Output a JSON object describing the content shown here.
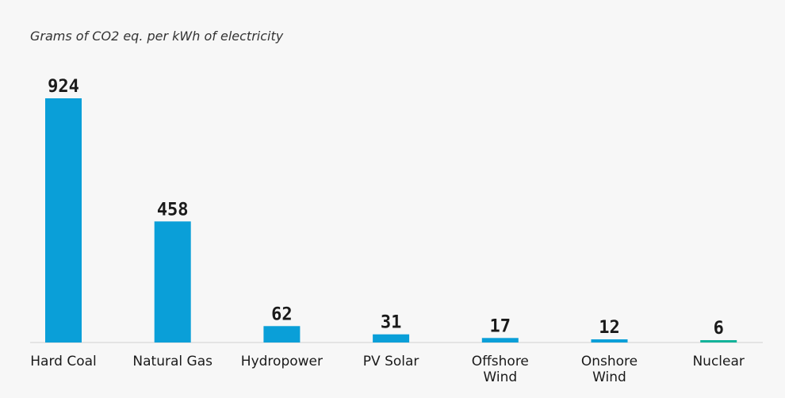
{
  "chart_data": {
    "type": "bar",
    "title": "Grams of CO2 eq. per kWh of electricity",
    "xlabel": "",
    "ylabel": "",
    "categories": [
      [
        "Hard Coal"
      ],
      [
        "Natural Gas"
      ],
      [
        "Hydropower"
      ],
      [
        "PV Solar"
      ],
      [
        "Offshore",
        "Wind"
      ],
      [
        "Onshore",
        "Wind"
      ],
      [
        "Nuclear"
      ]
    ],
    "values": [
      924,
      458,
      62,
      31,
      17,
      12,
      6
    ],
    "bar_colors": [
      "#0a9fd8",
      "#0a9fd8",
      "#0a9fd8",
      "#0a9fd8",
      "#0a9fd8",
      "#0a9fd8",
      "#13b39a"
    ],
    "ylim": [
      0,
      924
    ],
    "grid": false,
    "legend": "none"
  }
}
